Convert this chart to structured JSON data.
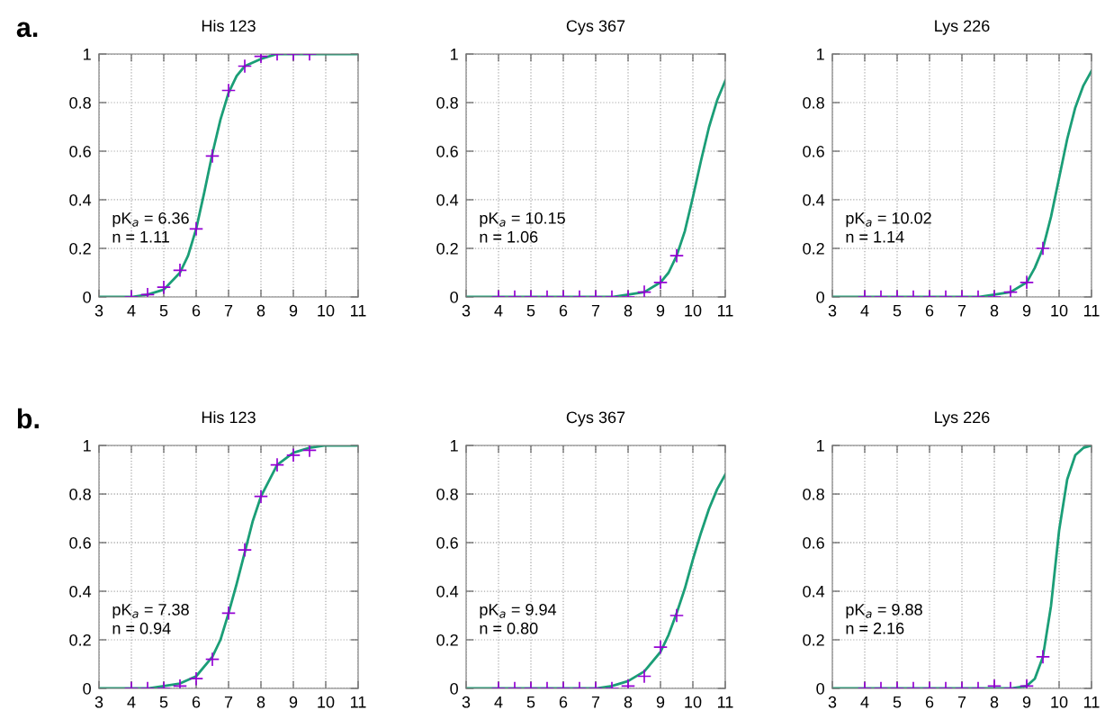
{
  "chart_data": [
    {
      "type": "line",
      "title": "His 123",
      "xlim": [
        3,
        11
      ],
      "xticks": [
        3,
        4,
        5,
        6,
        7,
        8,
        9,
        10,
        11
      ],
      "ylim": [
        0,
        1
      ],
      "yticks": [
        0,
        0.2,
        0.4,
        0.6,
        0.8,
        1
      ],
      "grid": true,
      "annotations": [
        "a.",
        "pK$_{a}$ = 6.36\nn = 1.11"
      ],
      "series": [
        {
          "type": "scatter",
          "marker": "cross",
          "color": "#9400d3",
          "x": [
            4,
            4.5,
            5,
            5.5,
            6,
            6.5,
            7,
            7.5,
            8,
            8.5,
            9,
            9.5
          ],
          "values": [
            0.0,
            0.01,
            0.04,
            0.11,
            0.28,
            0.58,
            0.85,
            0.95,
            0.99,
            1.0,
            1.0,
            1.0
          ]
        },
        {
          "color": "#1b9e77",
          "x": [
            3,
            3.5,
            4,
            4.5,
            5,
            5.5,
            5.75,
            6,
            6.25,
            6.5,
            6.75,
            7,
            7.25,
            7.5,
            8,
            8.5,
            9,
            10,
            11
          ],
          "values": [
            0.0,
            0.0,
            0.0,
            0.01,
            0.03,
            0.1,
            0.17,
            0.28,
            0.43,
            0.59,
            0.73,
            0.84,
            0.91,
            0.95,
            0.98,
            1.0,
            1.0,
            1.0,
            1.0
          ]
        }
      ]
    },
    {
      "type": "line",
      "title": "Cys 367",
      "xlim": [
        3,
        11
      ],
      "xticks": [
        3,
        4,
        5,
        6,
        7,
        8,
        9,
        10,
        11
      ],
      "ylim": [
        0,
        1
      ],
      "yticks": [
        0,
        0.2,
        0.4,
        0.6,
        0.8,
        1
      ],
      "grid": true,
      "annotations": [
        "pK$_{a}$ = 10.15\nn = 1.06"
      ],
      "series": [
        {
          "type": "scatter",
          "marker": "cross",
          "color": "#9400d3",
          "x": [
            4,
            4.5,
            5,
            5.5,
            6,
            6.5,
            7,
            7.5,
            8,
            8.5,
            9,
            9.5
          ],
          "values": [
            0.0,
            0.0,
            0.0,
            0.0,
            0.0,
            0.0,
            0.0,
            0.0,
            0.0,
            0.02,
            0.06,
            0.17
          ]
        },
        {
          "color": "#1b9e77",
          "x": [
            3,
            5,
            7,
            7.5,
            8,
            8.5,
            9,
            9.25,
            9.5,
            9.75,
            10,
            10.25,
            10.5,
            10.75,
            11
          ],
          "values": [
            0.0,
            0.0,
            0.0,
            0.0,
            0.01,
            0.02,
            0.06,
            0.1,
            0.17,
            0.27,
            0.41,
            0.56,
            0.7,
            0.81,
            0.89
          ]
        }
      ]
    },
    {
      "type": "line",
      "title": "Lys 226",
      "xlim": [
        3,
        11
      ],
      "xticks": [
        3,
        4,
        5,
        6,
        7,
        8,
        9,
        10,
        11
      ],
      "ylim": [
        0,
        1
      ],
      "yticks": [
        0,
        0.2,
        0.4,
        0.6,
        0.8,
        1
      ],
      "grid": true,
      "annotations": [
        "pK$_{a}$ = 10.02\nn = 1.14"
      ],
      "series": [
        {
          "type": "scatter",
          "marker": "cross",
          "color": "#9400d3",
          "x": [
            4,
            4.5,
            5,
            5.5,
            6,
            6.5,
            7,
            7.5,
            8,
            8.5,
            9,
            9.5
          ],
          "values": [
            0.0,
            0.0,
            0.0,
            0.0,
            0.0,
            0.0,
            0.0,
            0.0,
            0.0,
            0.02,
            0.06,
            0.2
          ]
        },
        {
          "color": "#1b9e77",
          "x": [
            3,
            5,
            7,
            7.5,
            8,
            8.5,
            9,
            9.25,
            9.5,
            9.75,
            10,
            10.25,
            10.5,
            10.75,
            11
          ],
          "values": [
            0.0,
            0.0,
            0.0,
            0.0,
            0.01,
            0.02,
            0.06,
            0.12,
            0.2,
            0.33,
            0.49,
            0.65,
            0.78,
            0.87,
            0.93
          ]
        }
      ]
    },
    {
      "type": "line",
      "title": "His 123",
      "xlim": [
        3,
        11
      ],
      "xticks": [
        3,
        4,
        5,
        6,
        7,
        8,
        9,
        10,
        11
      ],
      "ylim": [
        0,
        1
      ],
      "yticks": [
        0,
        0.2,
        0.4,
        0.6,
        0.8,
        1
      ],
      "grid": true,
      "annotations": [
        "b.",
        "pK$_{a}$ = 7.38\nn = 0.94"
      ],
      "series": [
        {
          "type": "scatter",
          "marker": "cross",
          "color": "#9400d3",
          "x": [
            4,
            4.5,
            5,
            5.5,
            6,
            6.5,
            7,
            7.5,
            8,
            8.5,
            9,
            9.5
          ],
          "values": [
            0.0,
            0.0,
            0.0,
            0.01,
            0.04,
            0.12,
            0.31,
            0.57,
            0.79,
            0.92,
            0.96,
            0.98
          ]
        },
        {
          "color": "#1b9e77",
          "x": [
            3,
            4,
            4.5,
            5,
            5.5,
            6,
            6.5,
            6.75,
            7,
            7.25,
            7.5,
            7.75,
            8,
            8.5,
            9,
            9.5,
            10,
            11
          ],
          "values": [
            0.0,
            0.0,
            0.0,
            0.01,
            0.02,
            0.05,
            0.13,
            0.2,
            0.31,
            0.43,
            0.56,
            0.69,
            0.79,
            0.92,
            0.97,
            0.99,
            1.0,
            1.0
          ]
        }
      ]
    },
    {
      "type": "line",
      "title": "Cys 367",
      "xlim": [
        3,
        11
      ],
      "xticks": [
        3,
        4,
        5,
        6,
        7,
        8,
        9,
        10,
        11
      ],
      "ylim": [
        0,
        1
      ],
      "yticks": [
        0,
        0.2,
        0.4,
        0.6,
        0.8,
        1
      ],
      "grid": true,
      "annotations": [
        "pK$_{a}$ = 9.94\nn = 0.80"
      ],
      "series": [
        {
          "type": "scatter",
          "marker": "cross",
          "color": "#9400d3",
          "x": [
            4,
            4.5,
            5,
            5.5,
            6,
            6.5,
            7,
            7.5,
            8,
            8.5,
            9,
            9.5
          ],
          "values": [
            0.0,
            0.0,
            0.0,
            0.0,
            0.0,
            0.0,
            0.0,
            0.0,
            0.01,
            0.05,
            0.17,
            0.3
          ]
        },
        {
          "color": "#1b9e77",
          "x": [
            3,
            5,
            6.5,
            7,
            7.5,
            8,
            8.5,
            9,
            9.25,
            9.5,
            9.75,
            10,
            10.25,
            10.5,
            10.75,
            11
          ],
          "values": [
            0.0,
            0.0,
            0.0,
            0.0,
            0.01,
            0.03,
            0.07,
            0.15,
            0.22,
            0.31,
            0.41,
            0.53,
            0.64,
            0.74,
            0.82,
            0.88
          ]
        }
      ]
    },
    {
      "type": "line",
      "title": "Lys 226",
      "xlim": [
        3,
        11
      ],
      "xticks": [
        3,
        4,
        5,
        6,
        7,
        8,
        9,
        10,
        11
      ],
      "ylim": [
        0,
        1
      ],
      "yticks": [
        0,
        0.2,
        0.4,
        0.6,
        0.8,
        1
      ],
      "grid": true,
      "annotations": [
        "pK$_{a}$ = 9.88\nn = 2.16"
      ],
      "series": [
        {
          "type": "scatter",
          "marker": "cross",
          "color": "#9400d3",
          "x": [
            4,
            4.5,
            5,
            5.5,
            6,
            6.5,
            7,
            7.5,
            8,
            8.5,
            9,
            9.5
          ],
          "values": [
            0.0,
            0.0,
            0.0,
            0.0,
            0.0,
            0.0,
            0.0,
            0.0,
            0.01,
            0.0,
            0.01,
            0.13
          ]
        },
        {
          "color": "#1b9e77",
          "x": [
            3,
            6,
            8.5,
            9,
            9.25,
            9.5,
            9.75,
            10,
            10.25,
            10.5,
            10.75,
            11
          ],
          "values": [
            0.0,
            0.0,
            0.0,
            0.01,
            0.04,
            0.13,
            0.34,
            0.65,
            0.86,
            0.96,
            0.99,
            1.0
          ]
        }
      ]
    }
  ]
}
